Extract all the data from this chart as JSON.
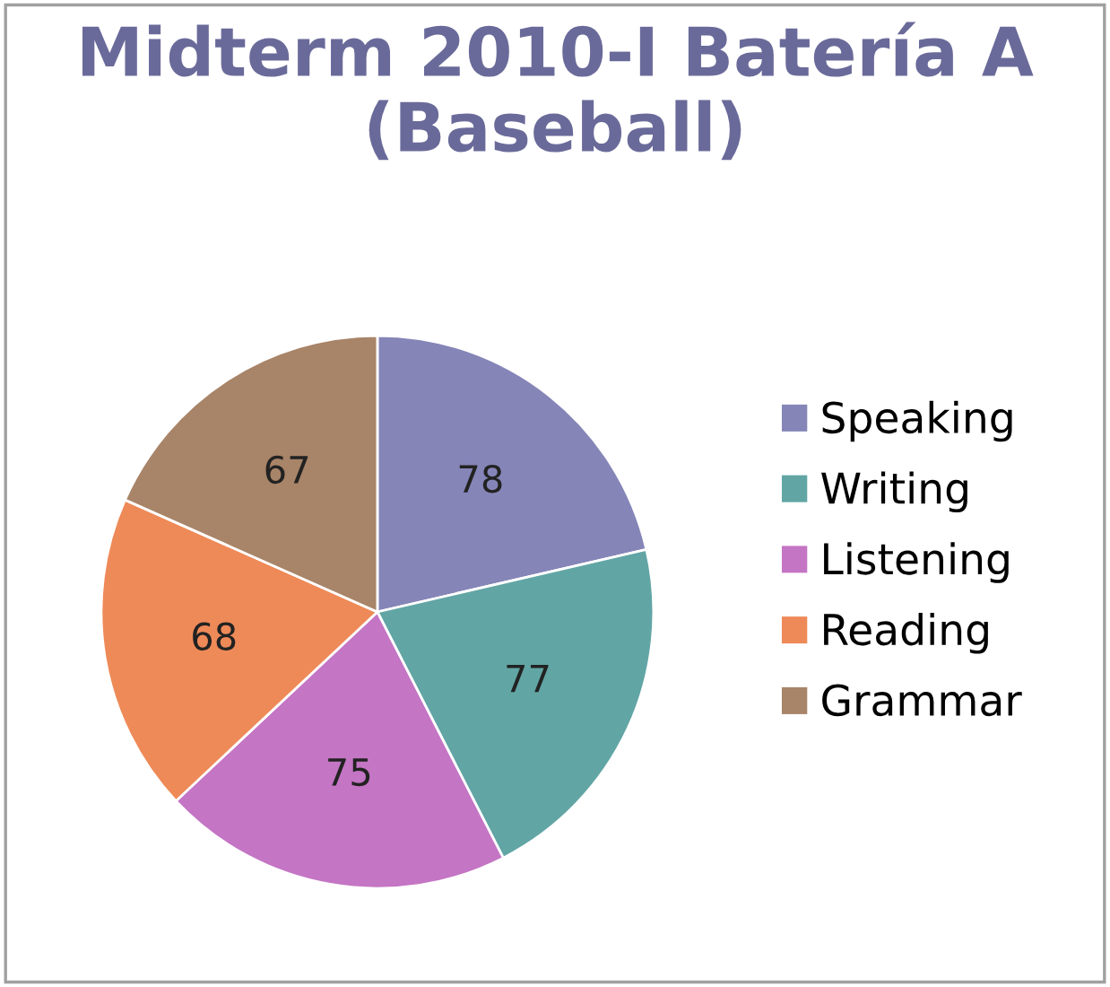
{
  "chart_data": {
    "type": "pie",
    "title": "Midterm 2010-I Batería A (Baseball)",
    "categories": [
      "Speaking",
      "Writing",
      "Listening",
      "Reading",
      "Grammar"
    ],
    "values": [
      78,
      77,
      75,
      68,
      67
    ],
    "colors": [
      "#8585b8",
      "#62a5a5",
      "#c475c4",
      "#ee8a58",
      "#a88468"
    ],
    "data_labels": true,
    "legend": "right"
  }
}
